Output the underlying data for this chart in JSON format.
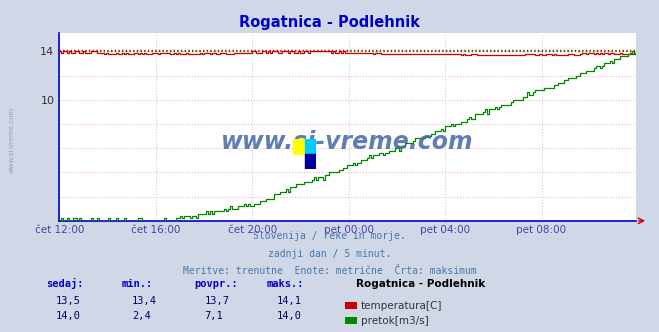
{
  "title": "Rogatnica - Podlehnik",
  "title_color": "#0000cc",
  "bg_color": "#d0d8e8",
  "plot_bg_color": "#ffffff",
  "grid_color_v": "#ccccdd",
  "grid_color_h": "#ffb0b0",
  "x_label_color": "#4444aa",
  "xlim": [
    0,
    288
  ],
  "ylim": [
    0,
    15.5
  ],
  "ytick_labels": [
    "14",
    "10"
  ],
  "ytick_vals": [
    14,
    10
  ],
  "xtick_labels": [
    "čet 12:00",
    "čet 16:00",
    "čet 20:00",
    "pet 00:00",
    "pet 04:00",
    "pet 08:00"
  ],
  "xtick_positions": [
    0,
    48,
    96,
    144,
    192,
    240
  ],
  "temp_color": "#cc0000",
  "flow_color": "#008800",
  "watermark_text": "www.si-vreme.com",
  "watermark_color": "#4466aa",
  "subtitle_lines": [
    "Slovenija / reke in morje.",
    "zadnji dan / 5 minut.",
    "Meritve: trenutne  Enote: metrične  Črta: maksimum"
  ],
  "subtitle_color": "#4477aa",
  "table_headers": [
    "sedaj:",
    "min.:",
    "povpr.:",
    "maks.:"
  ],
  "table_header_color": "#0000cc",
  "table_values_temp": [
    "13,5",
    "13,4",
    "13,7",
    "14,1"
  ],
  "table_values_flow": [
    "14,0",
    "2,4",
    "7,1",
    "14,0"
  ],
  "table_value_color": "#000066",
  "legend_title": "Rogatnica - Podlehnik",
  "legend_temp_label": "temperatura[C]",
  "legend_flow_label": "pretok[m3/s]",
  "temp_max": 14.1,
  "flow_max": 14.0,
  "spine_color": "#0000cc",
  "arrow_color": "#cc0000"
}
